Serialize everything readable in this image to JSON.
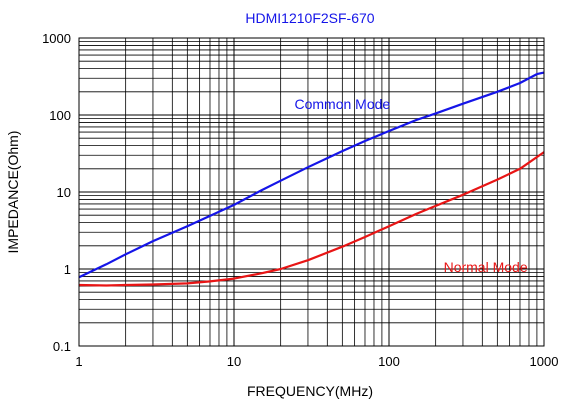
{
  "chart_data": {
    "type": "line",
    "title": "HDMI1210F2SF-670",
    "xlabel": "FREQUENCY(MHz)",
    "ylabel": "IMPEDANCE(Ohm)",
    "xscale": "log",
    "yscale": "log",
    "xlim": [
      1,
      1000
    ],
    "ylim": [
      0.1,
      1000
    ],
    "grid": true,
    "x_ticks": [
      "1",
      "10",
      "100",
      "1000"
    ],
    "y_ticks": [
      "0.1",
      "1",
      "10",
      "100",
      "1000"
    ],
    "series": [
      {
        "name": "Common Mode",
        "color": "#1515e8",
        "points": [
          [
            1,
            0.78
          ],
          [
            1.5,
            1.15
          ],
          [
            2,
            1.55
          ],
          [
            3,
            2.3
          ],
          [
            5,
            3.6
          ],
          [
            7,
            4.9
          ],
          [
            10,
            6.8
          ],
          [
            15,
            10.5
          ],
          [
            20,
            14
          ],
          [
            30,
            21
          ],
          [
            50,
            34
          ],
          [
            70,
            46
          ],
          [
            100,
            62
          ],
          [
            150,
            86
          ],
          [
            200,
            105
          ],
          [
            300,
            140
          ],
          [
            500,
            200
          ],
          [
            700,
            260
          ],
          [
            900,
            340
          ],
          [
            1000,
            355
          ]
        ]
      },
      {
        "name": "Normal Mode",
        "color": "#e81515",
        "points": [
          [
            1,
            0.62
          ],
          [
            1.5,
            0.61
          ],
          [
            2,
            0.62
          ],
          [
            3,
            0.63
          ],
          [
            5,
            0.65
          ],
          [
            7,
            0.69
          ],
          [
            10,
            0.75
          ],
          [
            15,
            0.88
          ],
          [
            20,
            1.0
          ],
          [
            30,
            1.3
          ],
          [
            50,
            1.95
          ],
          [
            70,
            2.6
          ],
          [
            100,
            3.6
          ],
          [
            150,
            5.2
          ],
          [
            200,
            6.6
          ],
          [
            300,
            9.2
          ],
          [
            500,
            14.5
          ],
          [
            700,
            20
          ],
          [
            1000,
            33
          ]
        ]
      }
    ],
    "annotations": [
      {
        "text": "Common Mode",
        "color": "#1515e8",
        "x": 50,
        "y": 120
      },
      {
        "text": "Normal Mode",
        "color": "#e81515",
        "x": 420,
        "y": 0.92
      }
    ]
  }
}
